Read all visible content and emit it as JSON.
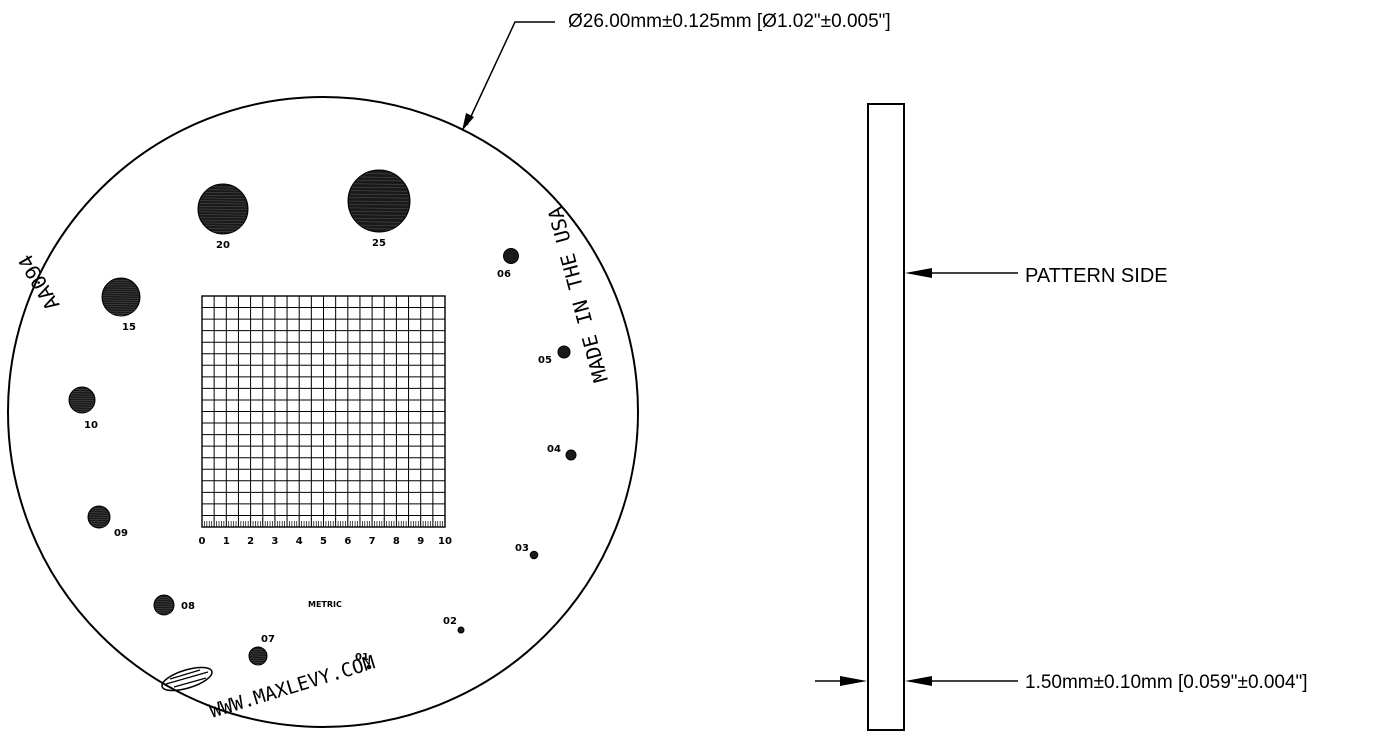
{
  "diameter_callout": "Ø26.00mm±0.125mm [Ø1.02\"±0.005\"]",
  "pattern_side_label": "PATTERN SIDE",
  "thickness_callout": "1.50mm±0.10mm [0.059\"±0.004\"]",
  "part_number": "AA094",
  "made_in": "MADE IN THE USA",
  "website": "WWW.MAXLEVY.COM",
  "metric_label": "METRIC",
  "grid": {
    "divisions": 20,
    "scale_labels": [
      "0",
      "1",
      "2",
      "3",
      "4",
      "5",
      "6",
      "7",
      "8",
      "9",
      "10"
    ]
  },
  "dots": [
    {
      "label": "25"
    },
    {
      "label": "20"
    },
    {
      "label": "15"
    },
    {
      "label": "10"
    },
    {
      "label": "09"
    },
    {
      "label": "08"
    },
    {
      "label": "07"
    },
    {
      "label": "01"
    },
    {
      "label": "02"
    },
    {
      "label": "03"
    },
    {
      "label": "04"
    },
    {
      "label": "05"
    },
    {
      "label": "06"
    }
  ]
}
